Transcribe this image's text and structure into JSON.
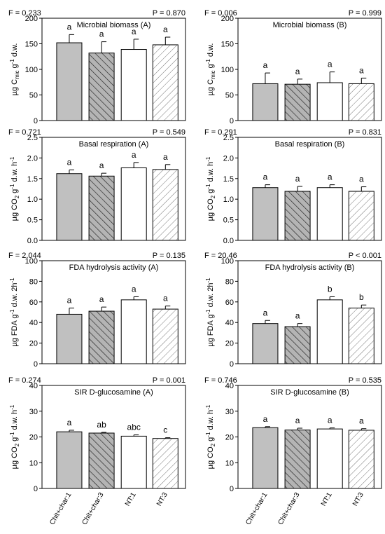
{
  "figure": {
    "categories": [
      "Chit+char:1",
      "Chit+char:3",
      "NT:1",
      "NT:3"
    ],
    "bar_styles": [
      {
        "fill": "#c0c0c0",
        "pattern": "none"
      },
      {
        "fill": "#b4b4b4",
        "pattern": "back-hatch"
      },
      {
        "fill": "#ffffff",
        "pattern": "none"
      },
      {
        "fill": "#ffffff",
        "pattern": "forward-hatch"
      }
    ]
  },
  "chart_data": [
    {
      "type": "bar",
      "panel": "A",
      "title": "Microbial biomass (A)",
      "f_stat": "F = 0.233",
      "p_value": "P = 0.870",
      "ylabel_parts": [
        "µg C",
        "mic",
        "g",
        "-1",
        "d.w."
      ],
      "ylim": [
        0,
        200
      ],
      "yticks": [
        "0",
        "50",
        "100",
        "150",
        "200"
      ],
      "categories": [
        "Chit+char:1",
        "Chit+char:3",
        "NT:1",
        "NT:3"
      ],
      "values": [
        152,
        132,
        139,
        148
      ],
      "errors": [
        16,
        22,
        20,
        15
      ],
      "labels": [
        "a",
        "a",
        "a",
        "a"
      ],
      "show_xticks": false
    },
    {
      "type": "bar",
      "panel": "B",
      "title": "Microbial biomass (B)",
      "f_stat": "F = 0.006",
      "p_value": "P = 0.999",
      "ylabel_parts": [
        "µg C",
        "mic",
        "g",
        "-1",
        "d.w."
      ],
      "ylim": [
        0,
        200
      ],
      "yticks": [
        "0",
        "50",
        "100",
        "150",
        "200"
      ],
      "categories": [
        "Chit+char:1",
        "Chit+char:3",
        "NT:1",
        "NT:3"
      ],
      "values": [
        72,
        71,
        74,
        72
      ],
      "errors": [
        21,
        10,
        21,
        11
      ],
      "labels": [
        "a",
        "a",
        "a",
        "a"
      ],
      "show_xticks": false
    },
    {
      "type": "bar",
      "panel": "A",
      "title": "Basal respiration (A)",
      "f_stat": "F = 0.721",
      "p_value": "P = 0.549",
      "ylabel_parts": [
        "µg CO",
        "2",
        "g",
        "-1",
        "d.w. h",
        "-1"
      ],
      "ylim": [
        0,
        2.5
      ],
      "yticks": [
        "0.0",
        "0.5",
        "1.0",
        "1.5",
        "2.0",
        "2.5"
      ],
      "categories": [
        "Chit+char:1",
        "Chit+char:3",
        "NT:1",
        "NT:3"
      ],
      "values": [
        1.62,
        1.56,
        1.76,
        1.72
      ],
      "errors": [
        0.09,
        0.07,
        0.13,
        0.12
      ],
      "labels": [
        "a",
        "a",
        "a",
        "a"
      ],
      "show_xticks": false
    },
    {
      "type": "bar",
      "panel": "B",
      "title": "Basal respiration (B)",
      "f_stat": "F = 0.291",
      "p_value": "P = 0.831",
      "ylabel_parts": [
        "µg CO",
        "2",
        "g",
        "-1",
        "d.w. h",
        "-1"
      ],
      "ylim": [
        0,
        2.5
      ],
      "yticks": [
        "0.0",
        "0.5",
        "1.0",
        "1.5",
        "2.0",
        "2.5"
      ],
      "categories": [
        "Chit+char:1",
        "Chit+char:3",
        "NT:1",
        "NT:3"
      ],
      "values": [
        1.28,
        1.19,
        1.28,
        1.19
      ],
      "errors": [
        0.07,
        0.12,
        0.07,
        0.11
      ],
      "labels": [
        "a",
        "a",
        "a",
        "a"
      ],
      "show_xticks": false
    },
    {
      "type": "bar",
      "panel": "A",
      "title": "FDA hydrolysis activity (A)",
      "f_stat": "F = 2.044",
      "p_value": "P = 0.135",
      "ylabel_parts": [
        "µg FDA g",
        "-1",
        "d.w. 2h",
        "-1"
      ],
      "ylim": [
        0,
        100
      ],
      "yticks": [
        "0",
        "20",
        "40",
        "60",
        "80",
        "100"
      ],
      "categories": [
        "Chit+char:1",
        "Chit+char:3",
        "NT:1",
        "NT:3"
      ],
      "values": [
        48,
        51,
        62,
        53
      ],
      "errors": [
        6,
        4,
        3,
        3
      ],
      "labels": [
        "a",
        "a",
        "a",
        "a"
      ],
      "show_xticks": false
    },
    {
      "type": "bar",
      "panel": "B",
      "title": "FDA hydrolysis activity (B)",
      "f_stat": "F = 20.46",
      "p_value": "P < 0.001",
      "ylabel_parts": [
        "µg FDA g",
        "-1",
        "d.w. 2h",
        "-1"
      ],
      "ylim": [
        0,
        100
      ],
      "yticks": [
        "0",
        "20",
        "40",
        "60",
        "80",
        "100"
      ],
      "categories": [
        "Chit+char:1",
        "Chit+char:3",
        "NT:1",
        "NT:3"
      ],
      "values": [
        39,
        36,
        62,
        54
      ],
      "errors": [
        3,
        3,
        3,
        3
      ],
      "labels": [
        "a",
        "a",
        "b",
        "b"
      ],
      "show_xticks": false
    },
    {
      "type": "bar",
      "panel": "A",
      "title": "SIR D-glucosamine (A)",
      "f_stat": "F = 0.274",
      "p_value": "P = 0.001",
      "ylabel_parts": [
        "µg CO",
        "2",
        "g",
        "-1",
        "d.w. h",
        "-1"
      ],
      "ylim": [
        0,
        40
      ],
      "yticks": [
        "0",
        "10",
        "20",
        "30",
        "40"
      ],
      "categories": [
        "Chit+char:1",
        "Chit+char:3",
        "NT:1",
        "NT:3"
      ],
      "values": [
        22.0,
        21.5,
        20.3,
        19.4
      ],
      "errors": [
        0.6,
        0.3,
        0.5,
        0.3
      ],
      "labels": [
        "a",
        "ab",
        "abc",
        "c"
      ],
      "show_xticks": true
    },
    {
      "type": "bar",
      "panel": "B",
      "title": "SIR D-glucosamine (B)",
      "f_stat": "F = 0.746",
      "p_value": "P = 0.535",
      "ylabel_parts": [
        "µg CO",
        "2",
        "g",
        "-1",
        "d.w. h",
        "-1"
      ],
      "ylim": [
        0,
        40
      ],
      "yticks": [
        "0",
        "10",
        "20",
        "30",
        "40"
      ],
      "categories": [
        "Chit+char:1",
        "Chit+char:3",
        "NT:1",
        "NT:3"
      ],
      "values": [
        23.6,
        22.7,
        23.1,
        22.6
      ],
      "errors": [
        0.4,
        0.7,
        0.4,
        0.6
      ],
      "labels": [
        "a",
        "a",
        "a",
        "a"
      ],
      "show_xticks": true
    }
  ]
}
